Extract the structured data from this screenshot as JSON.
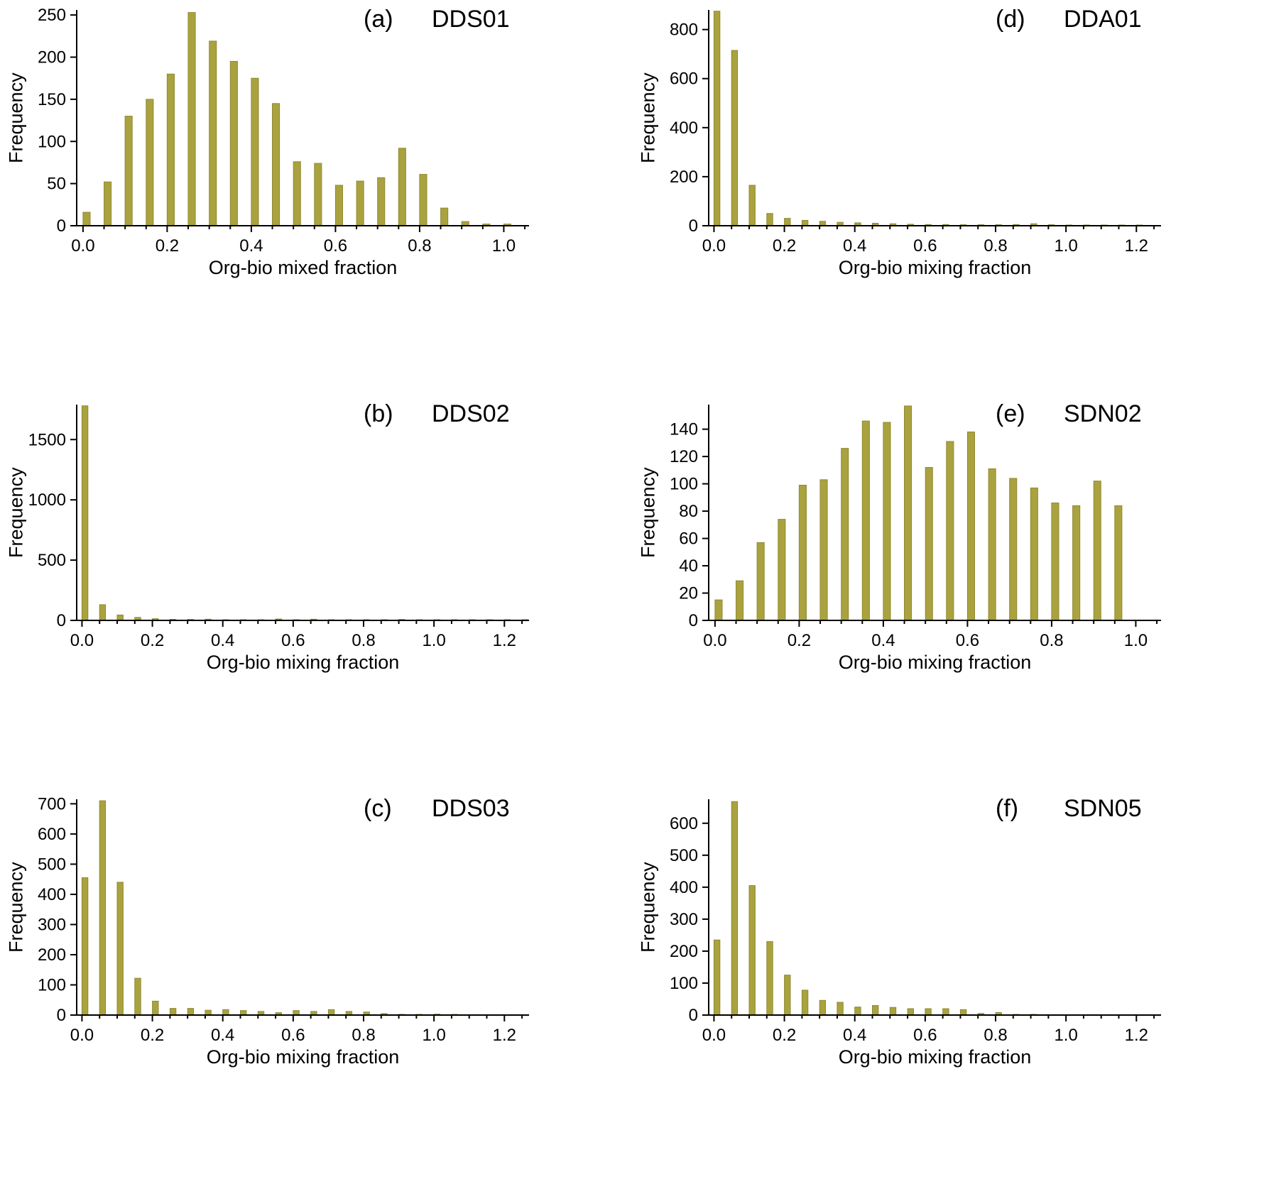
{
  "style": {
    "background": "#ffffff",
    "bar_color": "#a9a23e",
    "bar_edge": "#8f8a35",
    "axis_color": "#000000"
  },
  "chart_data": [
    {
      "id": "a",
      "type": "bar",
      "letter": "(a)",
      "title": "DDS01",
      "xlabel": "Org-bio mixed fraction",
      "ylabel": "Frequency",
      "bin_start": 0.0,
      "bin_step": 0.05,
      "values": [
        16,
        52,
        130,
        150,
        180,
        253,
        219,
        195,
        175,
        145,
        76,
        74,
        48,
        53,
        57,
        92,
        61,
        21,
        5,
        2,
        2
      ],
      "xlim": [
        -0.015,
        1.06
      ],
      "xticks": [
        0.0,
        0.2,
        0.4,
        0.6,
        0.8,
        1.0
      ],
      "ylim": [
        0,
        256
      ],
      "yticks": [
        0,
        50,
        100,
        150,
        200,
        250
      ],
      "grid": false,
      "legend": false
    },
    {
      "id": "b",
      "type": "bar",
      "letter": "(b)",
      "title": "DDS02",
      "xlabel": "Org-bio mixing fraction",
      "ylabel": "Frequency",
      "bin_start": 0.0,
      "bin_step": 0.05,
      "values": [
        1780,
        130,
        45,
        25,
        14,
        9,
        8,
        10,
        6,
        5,
        5,
        12,
        5,
        10,
        6,
        4,
        3,
        3,
        8,
        3,
        2,
        2,
        2,
        1,
        1,
        1
      ],
      "xlim": [
        -0.015,
        1.27
      ],
      "xticks": [
        0.0,
        0.2,
        0.4,
        0.6,
        0.8,
        1.0,
        1.2
      ],
      "ylim": [
        0,
        1790
      ],
      "yticks": [
        0,
        500,
        1000,
        1500
      ],
      "grid": false,
      "legend": false
    },
    {
      "id": "c",
      "type": "bar",
      "letter": "(c)",
      "title": "DDS03",
      "xlabel": "Org-bio mixing fraction",
      "ylabel": "Frequency",
      "bin_start": 0.0,
      "bin_step": 0.05,
      "values": [
        455,
        710,
        440,
        122,
        46,
        22,
        22,
        16,
        18,
        15,
        12,
        8,
        15,
        12,
        18,
        12,
        10,
        5,
        2,
        1,
        3,
        1,
        0,
        0,
        0,
        0
      ],
      "xlim": [
        -0.015,
        1.27
      ],
      "xticks": [
        0.0,
        0.2,
        0.4,
        0.6,
        0.8,
        1.0,
        1.2
      ],
      "ylim": [
        0,
        715
      ],
      "yticks": [
        0,
        100,
        200,
        300,
        400,
        500,
        600,
        700
      ],
      "grid": false,
      "legend": false
    },
    {
      "id": "d",
      "type": "bar",
      "letter": "(d)",
      "title": "DDA01",
      "xlabel": "Org-bio mixing fraction",
      "ylabel": "Frequency",
      "bin_start": 0.0,
      "bin_step": 0.05,
      "values": [
        875,
        715,
        165,
        50,
        30,
        22,
        18,
        14,
        12,
        10,
        8,
        6,
        5,
        5,
        4,
        4,
        4,
        5,
        8,
        4,
        3,
        2,
        1,
        1,
        1,
        0
      ],
      "xlim": [
        -0.015,
        1.27
      ],
      "xticks": [
        0.0,
        0.2,
        0.4,
        0.6,
        0.8,
        1.0,
        1.2
      ],
      "ylim": [
        0,
        880
      ],
      "yticks": [
        0,
        200,
        400,
        600,
        800
      ],
      "grid": false,
      "legend": false
    },
    {
      "id": "e",
      "type": "bar",
      "letter": "(e)",
      "title": "SDN02",
      "xlabel": "Org-bio mixing fraction",
      "ylabel": "Frequency",
      "bin_start": 0.0,
      "bin_step": 0.05,
      "values": [
        15,
        29,
        57,
        74,
        99,
        103,
        126,
        146,
        145,
        157,
        112,
        131,
        138,
        111,
        104,
        97,
        86,
        84,
        102,
        84
      ],
      "xlim": [
        -0.015,
        1.06
      ],
      "xticks": [
        0.0,
        0.2,
        0.4,
        0.6,
        0.8,
        1.0
      ],
      "ylim": [
        0,
        158
      ],
      "yticks": [
        0,
        20,
        40,
        60,
        80,
        100,
        120,
        140
      ],
      "grid": false,
      "legend": false
    },
    {
      "id": "f",
      "type": "bar",
      "letter": "(f)",
      "title": "SDN05",
      "xlabel": "Org-bio mixing fraction",
      "ylabel": "Frequency",
      "bin_start": 0.0,
      "bin_step": 0.05,
      "values": [
        235,
        668,
        405,
        230,
        125,
        78,
        46,
        40,
        25,
        30,
        24,
        20,
        20,
        20,
        17,
        5,
        8,
        2,
        1,
        0,
        0,
        0,
        0,
        0,
        0,
        0
      ],
      "xlim": [
        -0.015,
        1.27
      ],
      "xticks": [
        0.0,
        0.2,
        0.4,
        0.6,
        0.8,
        1.0,
        1.2
      ],
      "ylim": [
        0,
        675
      ],
      "yticks": [
        0,
        100,
        200,
        300,
        400,
        500,
        600
      ],
      "grid": false,
      "legend": false
    }
  ]
}
